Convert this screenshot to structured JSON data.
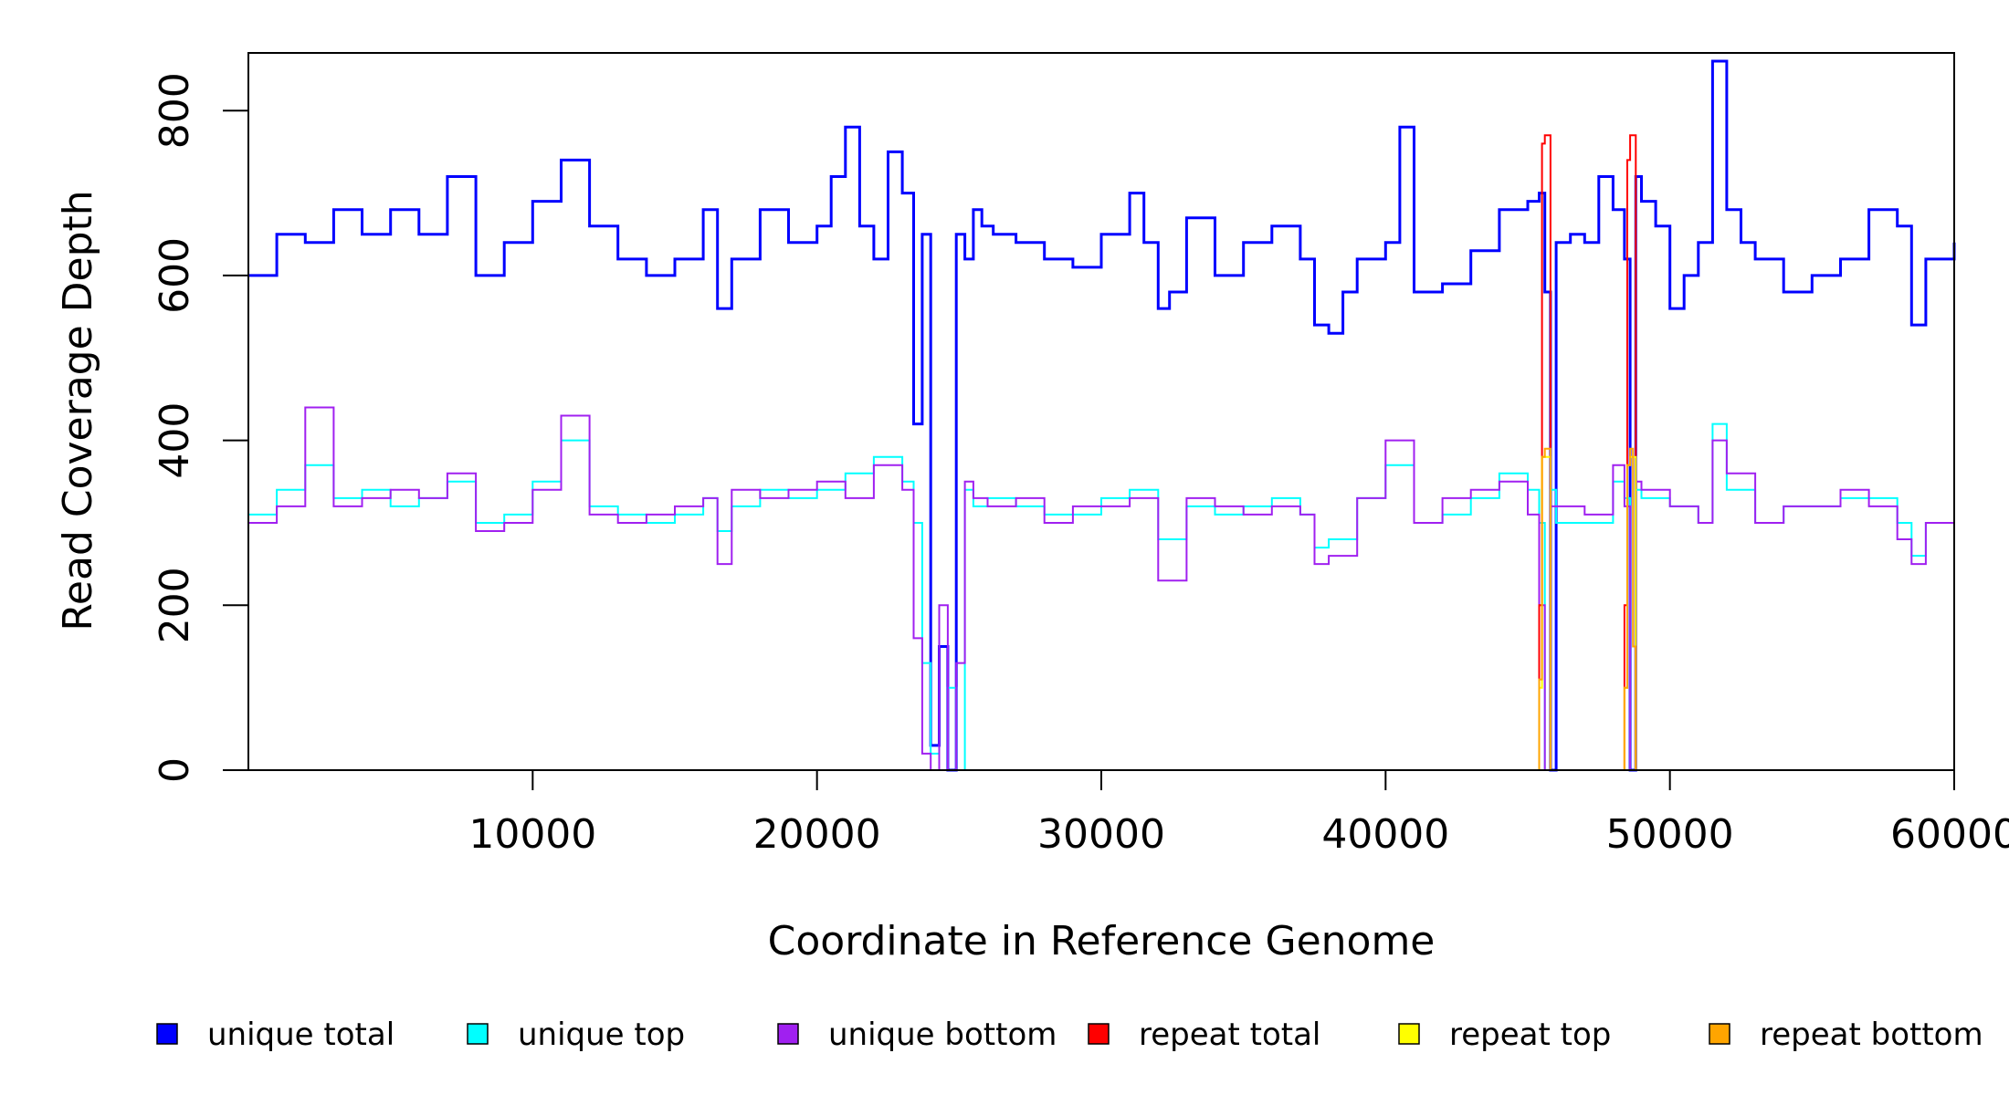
{
  "chart_data": {
    "type": "line",
    "title": "",
    "xlabel": "Coordinate in Reference Genome",
    "ylabel": "Read Coverage Depth",
    "xlim": [
      0,
      60000
    ],
    "ylim": [
      0,
      870
    ],
    "xticks": [
      10000,
      20000,
      30000,
      40000,
      50000,
      60000
    ],
    "xtick_labels": [
      "10000",
      "20000",
      "30000",
      "40000",
      "50000",
      "60000"
    ],
    "yticks": [
      0,
      200,
      400,
      600,
      800
    ],
    "ytick_labels": [
      "0",
      "200",
      "400",
      "600",
      "800"
    ],
    "grid": false,
    "legend_position": "bottom",
    "series": [
      {
        "name": "unique total",
        "color": "#0000ff",
        "x": [
          0,
          1000,
          2000,
          3000,
          4000,
          5000,
          6000,
          7000,
          8000,
          9000,
          10000,
          11000,
          12000,
          13000,
          14000,
          15000,
          16000,
          16500,
          17000,
          18000,
          19000,
          20000,
          20500,
          21000,
          21500,
          22000,
          22500,
          23000,
          23400,
          23700,
          24000,
          24300,
          24600,
          24900,
          25200,
          25500,
          25800,
          26200,
          27000,
          28000,
          29000,
          30000,
          31000,
          31500,
          32000,
          32400,
          33000,
          34000,
          35000,
          36000,
          37000,
          37500,
          38000,
          38500,
          39000,
          40000,
          40500,
          41000,
          42000,
          43000,
          44000,
          45000,
          45400,
          45600,
          45800,
          46000,
          46500,
          47000,
          47500,
          48000,
          48400,
          48600,
          48800,
          49000,
          49500,
          50000,
          50500,
          51000,
          51500,
          52000,
          52500,
          53000,
          54000,
          55000,
          56000,
          57000,
          58000,
          58500,
          59000,
          60000
        ],
        "y": [
          600,
          650,
          640,
          680,
          650,
          680,
          650,
          720,
          600,
          640,
          690,
          740,
          660,
          620,
          600,
          620,
          680,
          560,
          620,
          680,
          640,
          660,
          720,
          780,
          660,
          620,
          750,
          700,
          420,
          650,
          30,
          150,
          0,
          650,
          620,
          680,
          660,
          650,
          640,
          620,
          610,
          650,
          700,
          640,
          560,
          580,
          670,
          600,
          640,
          660,
          620,
          540,
          530,
          580,
          620,
          640,
          780,
          580,
          590,
          630,
          680,
          690,
          700,
          580,
          0,
          640,
          650,
          640,
          720,
          680,
          620,
          0,
          720,
          690,
          660,
          560,
          600,
          640,
          860,
          680,
          640,
          620,
          580,
          600,
          620,
          680,
          660,
          540,
          620,
          640
        ]
      },
      {
        "name": "unique top",
        "color": "#00ffff",
        "x": [
          0,
          1000,
          2000,
          3000,
          4000,
          5000,
          6000,
          7000,
          8000,
          9000,
          10000,
          11000,
          12000,
          13000,
          14000,
          15000,
          16000,
          16500,
          17000,
          18000,
          19000,
          20000,
          21000,
          22000,
          23000,
          23400,
          23700,
          24000,
          24300,
          24600,
          24900,
          25200,
          25500,
          26000,
          27000,
          28000,
          29000,
          30000,
          31000,
          32000,
          33000,
          34000,
          35000,
          36000,
          37000,
          37500,
          38000,
          39000,
          40000,
          41000,
          42000,
          43000,
          44000,
          45000,
          45400,
          45600,
          45800,
          46000,
          47000,
          48000,
          48400,
          48600,
          48800,
          49000,
          50000,
          51000,
          51500,
          52000,
          53000,
          54000,
          55000,
          56000,
          57000,
          58000,
          58500,
          59000,
          60000
        ],
        "y": [
          310,
          340,
          370,
          330,
          340,
          320,
          330,
          350,
          300,
          310,
          350,
          400,
          320,
          310,
          300,
          310,
          330,
          290,
          320,
          340,
          330,
          340,
          360,
          380,
          350,
          300,
          130,
          20,
          0,
          100,
          0,
          340,
          320,
          330,
          320,
          310,
          310,
          330,
          340,
          280,
          320,
          310,
          320,
          330,
          310,
          270,
          280,
          330,
          370,
          300,
          310,
          330,
          360,
          340,
          300,
          0,
          340,
          300,
          300,
          350,
          330,
          0,
          340,
          330,
          320,
          300,
          420,
          340,
          300,
          320,
          320,
          330,
          330,
          300,
          260,
          300,
          320
        ]
      },
      {
        "name": "unique bottom",
        "color": "#a020f0",
        "x": [
          0,
          1000,
          2000,
          3000,
          4000,
          5000,
          6000,
          7000,
          8000,
          9000,
          10000,
          11000,
          12000,
          13000,
          14000,
          15000,
          16000,
          16500,
          17000,
          18000,
          19000,
          20000,
          21000,
          22000,
          23000,
          23400,
          23700,
          24000,
          24300,
          24600,
          24900,
          25200,
          25500,
          26000,
          27000,
          28000,
          29000,
          30000,
          31000,
          32000,
          33000,
          34000,
          35000,
          36000,
          37000,
          37500,
          38000,
          39000,
          40000,
          41000,
          42000,
          43000,
          44000,
          45000,
          45400,
          45600,
          45800,
          46000,
          47000,
          48000,
          48400,
          48600,
          48800,
          49000,
          50000,
          51000,
          51500,
          52000,
          53000,
          54000,
          55000,
          56000,
          57000,
          58000,
          58500,
          59000,
          60000
        ],
        "y": [
          300,
          320,
          440,
          320,
          330,
          340,
          330,
          360,
          290,
          300,
          340,
          430,
          310,
          300,
          310,
          320,
          330,
          250,
          340,
          330,
          340,
          350,
          330,
          370,
          340,
          160,
          20,
          0,
          200,
          0,
          130,
          350,
          330,
          320,
          330,
          300,
          320,
          320,
          330,
          230,
          330,
          320,
          310,
          320,
          310,
          250,
          260,
          330,
          400,
          300,
          330,
          340,
          350,
          310,
          200,
          0,
          320,
          320,
          310,
          370,
          320,
          0,
          350,
          340,
          320,
          300,
          400,
          360,
          300,
          320,
          320,
          340,
          320,
          280,
          250,
          300,
          360
        ]
      },
      {
        "name": "repeat total",
        "color": "#ff0000",
        "x": [
          0,
          45300,
          45400,
          45500,
          45600,
          45700,
          45800,
          45900,
          48300,
          48400,
          48500,
          48600,
          48700,
          48800,
          48900,
          60000
        ],
        "y": [
          0,
          0,
          200,
          760,
          770,
          770,
          0,
          0,
          0,
          200,
          740,
          770,
          770,
          0,
          0,
          0
        ]
      },
      {
        "name": "repeat top",
        "color": "#ffff00",
        "x": [
          0,
          45300,
          45400,
          45500,
          45600,
          45700,
          45800,
          45900,
          48300,
          48400,
          48500,
          48600,
          48700,
          48800,
          48900,
          60000
        ],
        "y": [
          0,
          0,
          100,
          380,
          380,
          380,
          0,
          0,
          0,
          100,
          370,
          380,
          380,
          0,
          0,
          0
        ]
      },
      {
        "name": "repeat bottom",
        "color": "#ffa500",
        "x": [
          0,
          45300,
          45400,
          45500,
          45600,
          45700,
          45800,
          45900,
          48300,
          48400,
          48500,
          48600,
          48700,
          48800,
          48900,
          60000
        ],
        "y": [
          0,
          0,
          110,
          380,
          390,
          390,
          0,
          0,
          0,
          100,
          370,
          390,
          150,
          0,
          0,
          0
        ]
      }
    ]
  }
}
